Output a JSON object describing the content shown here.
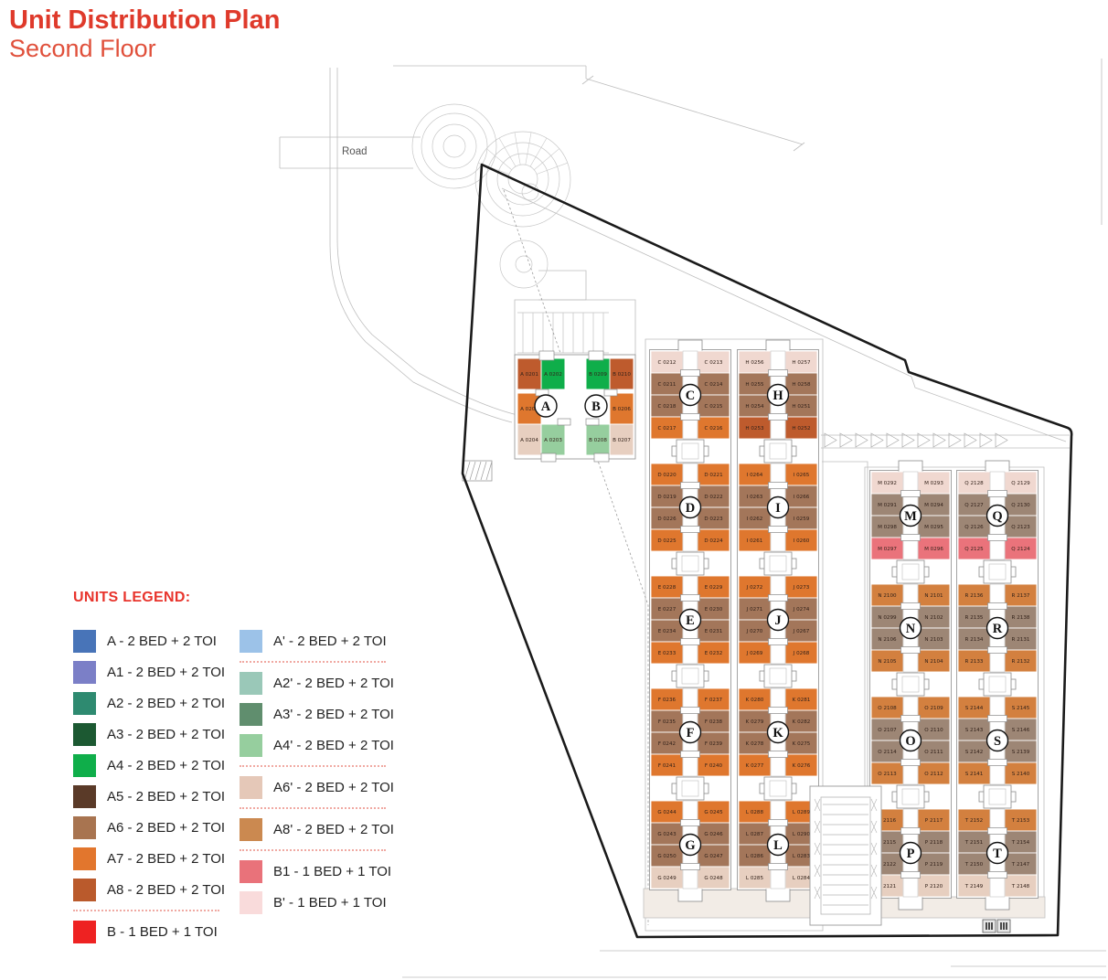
{
  "title": {
    "line1": "Unit Distribution Plan",
    "line2": "Second Floor"
  },
  "legend": {
    "heading": "UNITS LEGEND:",
    "left": [
      {
        "code": "A",
        "label": "A - 2 BED + 2 TOI",
        "color": "#4874B8"
      },
      {
        "code": "A1",
        "label": "A1 - 2 BED + 2 TOI",
        "color": "#7B7FC7"
      },
      {
        "code": "A2",
        "label": "A2 - 2 BED + 2 TOI",
        "color": "#2E8A70"
      },
      {
        "code": "A3",
        "label": "A3 - 2 BED + 2 TOI",
        "color": "#1C5932"
      },
      {
        "code": "A4",
        "label": "A4 - 2 BED + 2 TOI",
        "color": "#0FAE4A"
      },
      {
        "code": "A5",
        "label": "A5 - 2 BED + 2 TOI",
        "color": "#5A3A28"
      },
      {
        "code": "A6",
        "label": "A6 - 2 BED + 2 TOI",
        "color": "#A87450"
      },
      {
        "code": "A7",
        "label": "A7 - 2 BED + 2 TOI",
        "color": "#E2762D"
      },
      {
        "code": "A8",
        "label": "A8 - 2 BED + 2 TOI",
        "color": "#BA5A2C",
        "divider_after": true
      },
      {
        "code": "B",
        "label": "B - 1 BED + 1 TOI",
        "color": "#EE2222"
      }
    ],
    "right": [
      {
        "code": "A'",
        "label": "A' - 2 BED + 2 TOI",
        "color": "#9CC2E8",
        "divider_after": true
      },
      {
        "code": "A2'",
        "label": "A2' - 2 BED + 2 TOI",
        "color": "#9AC8B8"
      },
      {
        "code": "A3'",
        "label": "A3' - 2 BED + 2 TOI",
        "color": "#608E6E"
      },
      {
        "code": "A4'",
        "label": "A4' - 2 BED + 2 TOI",
        "color": "#96CE9E",
        "divider_after": true
      },
      {
        "code": "A6'",
        "label": "A6' - 2 BED + 2 TOI",
        "color": "#E5C8B8",
        "divider_after": true
      },
      {
        "code": "A8'",
        "label": "A8' - 2 BED + 2 TOI",
        "color": "#CB8950",
        "divider_after": true
      },
      {
        "code": "B1",
        "label": "B1 - 1 BED + 1 TOI",
        "color": "#E9727A"
      },
      {
        "code": "B'",
        "label": "B' - 1 BED + 1 TOI",
        "color": "#F9DBDB"
      }
    ]
  },
  "plan": {
    "road_label": "Road",
    "colors": {
      "top_light": "#F0D8D0",
      "bottom_tan": "#E7CFC0",
      "brown": "#A3765A",
      "graybrown": "#9D8675",
      "orange": "#DF772E",
      "orange2": "#D3803F",
      "rust": "#BE5B2D",
      "salmon": "#EA737B",
      "green": "#0FAE4A",
      "lightgreen": "#96CE9E"
    },
    "ab": {
      "circle_a": "A",
      "circle_b": "B",
      "units": [
        {
          "label": "A 0201",
          "color": "rust"
        },
        {
          "label": "A 0202",
          "color": "green"
        },
        {
          "label": "A 0205",
          "color": "orange"
        },
        {
          "label": "A 0204",
          "color": "bottom_tan"
        },
        {
          "label": "A 0203",
          "color": "lightgreen"
        },
        {
          "label": "B 0209",
          "color": "green"
        },
        {
          "label": "B 0210",
          "color": "rust"
        },
        {
          "label": "B 0206",
          "color": "orange"
        },
        {
          "label": "B 0208",
          "color": "lightgreen"
        },
        {
          "label": "B 0207",
          "color": "bottom_tan"
        }
      ]
    },
    "towers": [
      {
        "sections": [
          {
            "letter": "C",
            "rows": [
              {
                "left": "C 0212",
                "right": "C 0213",
                "color": "top_light"
              },
              {
                "left": "C 0211",
                "right": "C 0214",
                "color": "brown"
              },
              {
                "left": "C 0218",
                "right": "C 0215",
                "color": "brown"
              },
              {
                "left": "C 0217",
                "right": "C 0216",
                "color": "orange"
              }
            ]
          },
          {
            "letter": "D",
            "rows": [
              {
                "left": "D 0220",
                "right": "D 0221",
                "color": "orange"
              },
              {
                "left": "D 0219",
                "right": "D 0222",
                "color": "brown"
              },
              {
                "left": "D 0226",
                "right": "D 0223",
                "color": "brown"
              },
              {
                "left": "D 0225",
                "right": "D 0224",
                "color": "orange"
              }
            ]
          },
          {
            "letter": "E",
            "rows": [
              {
                "left": "E 0228",
                "right": "E 0229",
                "color": "orange"
              },
              {
                "left": "E 0227",
                "right": "E 0230",
                "color": "brown"
              },
              {
                "left": "E 0234",
                "right": "E 0231",
                "color": "brown"
              },
              {
                "left": "E 0233",
                "right": "E 0232",
                "color": "orange"
              }
            ]
          },
          {
            "letter": "F",
            "rows": [
              {
                "left": "F 0236",
                "right": "F 0237",
                "color": "orange"
              },
              {
                "left": "F 0235",
                "right": "F 0238",
                "color": "brown"
              },
              {
                "left": "F 0242",
                "right": "F 0239",
                "color": "brown"
              },
              {
                "left": "F 0241",
                "right": "F 0240",
                "color": "orange"
              }
            ]
          },
          {
            "letter": "G",
            "rows": [
              {
                "left": "G 0244",
                "right": "G 0245",
                "color": "orange"
              },
              {
                "left": "G 0243",
                "right": "G 0246",
                "color": "brown"
              },
              {
                "left": "G 0250",
                "right": "G 0247",
                "color": "brown"
              },
              {
                "left": "G 0249",
                "right": "G 0248",
                "color": "bottom_tan"
              }
            ]
          }
        ]
      },
      {
        "sections": [
          {
            "letter": "H",
            "rows": [
              {
                "left": "H 0256",
                "right": "H 0257",
                "color": "top_light"
              },
              {
                "left": "H 0255",
                "right": "H 0258",
                "color": "brown"
              },
              {
                "left": "H 0254",
                "right": "H 0251",
                "color": "brown"
              },
              {
                "left": "H 0253",
                "right": "H 0252",
                "color": "rust"
              }
            ]
          },
          {
            "letter": "I",
            "rows": [
              {
                "left": "I 0264",
                "right": "I 0265",
                "color": "orange"
              },
              {
                "left": "I 0263",
                "right": "I 0266",
                "color": "brown"
              },
              {
                "left": "I 0262",
                "right": "I 0259",
                "color": "brown"
              },
              {
                "left": "I 0261",
                "right": "I 0260",
                "color": "orange"
              }
            ]
          },
          {
            "letter": "J",
            "rows": [
              {
                "left": "J 0272",
                "right": "J 0273",
                "color": "orange"
              },
              {
                "left": "J 0271",
                "right": "J 0274",
                "color": "brown"
              },
              {
                "left": "J 0270",
                "right": "J 0267",
                "color": "brown"
              },
              {
                "left": "J 0269",
                "right": "J 0268",
                "color": "orange"
              }
            ]
          },
          {
            "letter": "K",
            "rows": [
              {
                "left": "K 0280",
                "right": "K 0281",
                "color": "orange"
              },
              {
                "left": "K 0279",
                "right": "K 0282",
                "color": "brown"
              },
              {
                "left": "K 0278",
                "right": "K 0275",
                "color": "brown"
              },
              {
                "left": "K 0277",
                "right": "K 0276",
                "color": "orange"
              }
            ]
          },
          {
            "letter": "L",
            "rows": [
              {
                "left": "L 0288",
                "right": "L 0289",
                "color": "orange"
              },
              {
                "left": "L 0287",
                "right": "L 0290",
                "color": "brown"
              },
              {
                "left": "L 0286",
                "right": "L 0283",
                "color": "brown"
              },
              {
                "left": "L 0285",
                "right": "L 0284",
                "color": "bottom_tan"
              }
            ]
          }
        ]
      },
      {
        "sections": [
          {
            "letter": "M",
            "rows": [
              {
                "left": "M 0292",
                "right": "M 0293",
                "color": "top_light"
              },
              {
                "left": "M 0291",
                "right": "M 0294",
                "color": "graybrown"
              },
              {
                "left": "M 0298",
                "right": "M 0295",
                "color": "graybrown"
              },
              {
                "left": "M 0297",
                "right": "M 0296",
                "color": "salmon"
              }
            ]
          },
          {
            "letter": "N",
            "rows": [
              {
                "left": "N 2100",
                "right": "N 2101",
                "color": "orange2"
              },
              {
                "left": "N 0299",
                "right": "N 2102",
                "color": "graybrown"
              },
              {
                "left": "N 2106",
                "right": "N 2103",
                "color": "graybrown"
              },
              {
                "left": "N 2105",
                "right": "N 2104",
                "color": "orange2"
              }
            ]
          },
          {
            "letter": "O",
            "rows": [
              {
                "left": "O 2108",
                "right": "O 2109",
                "color": "orange2"
              },
              {
                "left": "O 2107",
                "right": "O 2110",
                "color": "graybrown"
              },
              {
                "left": "O 2114",
                "right": "O 2111",
                "color": "graybrown"
              },
              {
                "left": "O 2113",
                "right": "O 2112",
                "color": "orange2"
              }
            ]
          },
          {
            "letter": "P",
            "rows": [
              {
                "left": "P 2116",
                "right": "P 2117",
                "color": "orange2"
              },
              {
                "left": "P 2115",
                "right": "P 2118",
                "color": "graybrown"
              },
              {
                "left": "P 2122",
                "right": "P 2119",
                "color": "graybrown"
              },
              {
                "left": "P 2121",
                "right": "P 2120",
                "color": "bottom_tan"
              }
            ]
          }
        ]
      },
      {
        "sections": [
          {
            "letter": "Q",
            "rows": [
              {
                "left": "Q 2128",
                "right": "Q 2129",
                "color": "top_light"
              },
              {
                "left": "Q 2127",
                "right": "Q 2130",
                "color": "graybrown"
              },
              {
                "left": "Q 2126",
                "right": "Q 2123",
                "color": "graybrown"
              },
              {
                "left": "Q 2125",
                "right": "Q 2124",
                "color": "salmon"
              }
            ]
          },
          {
            "letter": "R",
            "rows": [
              {
                "left": "R 2136",
                "right": "R 2137",
                "color": "orange2"
              },
              {
                "left": "R 2135",
                "right": "R 2138",
                "color": "graybrown"
              },
              {
                "left": "R 2134",
                "right": "R 2131",
                "color": "graybrown"
              },
              {
                "left": "R 2133",
                "right": "R 2132",
                "color": "orange2"
              }
            ]
          },
          {
            "letter": "S",
            "rows": [
              {
                "left": "S 2144",
                "right": "S 2145",
                "color": "orange2"
              },
              {
                "left": "S 2143",
                "right": "S 2146",
                "color": "graybrown"
              },
              {
                "left": "S 2142",
                "right": "S 2139",
                "color": "graybrown"
              },
              {
                "left": "S 2141",
                "right": "S 2140",
                "color": "orange2"
              }
            ]
          },
          {
            "letter": "T",
            "rows": [
              {
                "left": "T 2152",
                "right": "T 2153",
                "color": "orange2"
              },
              {
                "left": "T 2151",
                "right": "T 2154",
                "color": "graybrown"
              },
              {
                "left": "T 2150",
                "right": "T 2147",
                "color": "graybrown"
              },
              {
                "left": "T 2149",
                "right": "T 2148",
                "color": "bottom_tan"
              }
            ]
          }
        ]
      }
    ]
  }
}
